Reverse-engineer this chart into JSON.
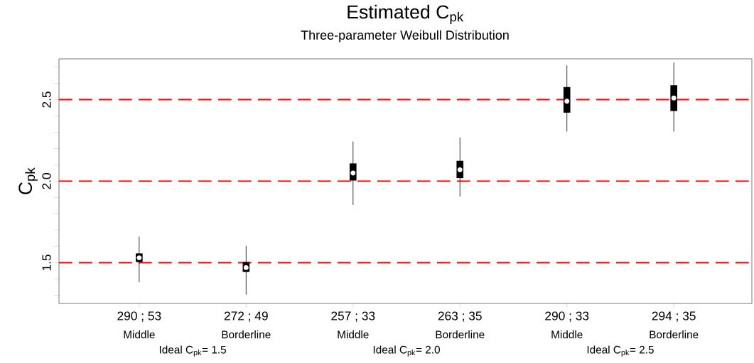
{
  "chart_data": {
    "type": "box",
    "title": "Estimated C$_{pk}$",
    "subtitle": "Three-parameter Weibull Distribution",
    "ylabel": "C$_{pk}$",
    "categories": [
      "290 ; 53",
      "272 ; 49",
      "257 ; 33",
      "263 ; 35",
      "290 ; 33",
      "294 ; 35"
    ],
    "boxes": [
      {
        "low": 1.38,
        "q1": 1.504,
        "median": 1.53,
        "q3": 1.557,
        "high": 1.66
      },
      {
        "low": 1.304,
        "q1": 1.443,
        "median": 1.47,
        "q3": 1.504,
        "high": 1.603
      },
      {
        "low": 1.855,
        "q1": 2.004,
        "median": 2.05,
        "q3": 2.109,
        "high": 2.243
      },
      {
        "low": 1.906,
        "q1": 2.019,
        "median": 2.07,
        "q3": 2.125,
        "high": 2.267
      },
      {
        "low": 2.304,
        "q1": 2.42,
        "median": 2.49,
        "q3": 2.577,
        "high": 2.71
      },
      {
        "low": 2.304,
        "q1": 2.43,
        "median": 2.51,
        "q3": 2.588,
        "high": 2.727
      }
    ],
    "ylim": [
      1.25,
      2.75
    ],
    "yticks": [
      {
        "value": 1.3,
        "label": null
      },
      {
        "value": 1.4,
        "label": null
      },
      1.5,
      {
        "value": 1.6,
        "label": null
      },
      {
        "value": 1.7,
        "label": null
      },
      {
        "value": 1.8,
        "label": null
      },
      {
        "value": 1.9,
        "label": null
      },
      {
        "value": 2.0,
        "label": "2.0"
      },
      {
        "value": 2.1,
        "label": null
      },
      {
        "value": 2.2,
        "label": null
      },
      {
        "value": 2.3,
        "label": null
      },
      {
        "value": 2.4,
        "label": null
      },
      2.5,
      {
        "value": 2.6,
        "label": null
      },
      {
        "value": 2.7,
        "label": null
      }
    ],
    "ref_lines": [
      {
        "axis": "y",
        "value": 1.5,
        "color": "#ff0000",
        "line_style": "dashed"
      },
      {
        "axis": "y",
        "value": 2.0,
        "color": "#ff0000",
        "line_style": "dashed"
      },
      {
        "axis": "y",
        "value": 2.5,
        "color": "#ff0000",
        "line_style": "dashed"
      }
    ],
    "annotations": [
      "Middle",
      "Borderline",
      "Middle",
      "Borderline",
      "Middle",
      "Borderline",
      "Ideal C$_{pk}$= 1.5",
      "Ideal C$_{pk}$= 2.0",
      "Ideal C$_{pk}$= 2.5"
    ],
    "grid": false
  }
}
